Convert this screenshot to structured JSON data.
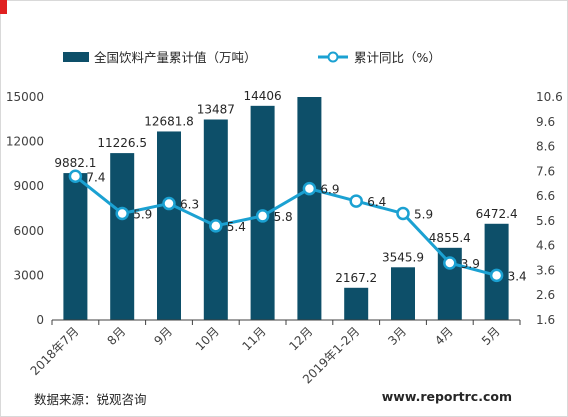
{
  "chart_data": {
    "type": "bar+line",
    "categories": [
      "2018年7月",
      "8月",
      "9月",
      "10月",
      "11月",
      "12月",
      "2019年1-2月",
      "3月",
      "4月",
      "5月"
    ],
    "series": [
      {
        "name": "全国饮料产量累计值（万吨）",
        "type": "bar",
        "axis": "left",
        "values": [
          9882.1,
          11226.5,
          12681.8,
          13487,
          14406,
          15000,
          2167.2,
          3545.9,
          4855.4,
          6472.4
        ],
        "labels": [
          "9882.1",
          "11226.5",
          "12681.8",
          "13487",
          "14406",
          "",
          "2167.2",
          "3545.9",
          "4855.4",
          "6472.4"
        ]
      },
      {
        "name": "累计同比（%）",
        "type": "line",
        "axis": "right",
        "values": [
          7.4,
          5.9,
          6.3,
          5.4,
          5.8,
          6.9,
          6.4,
          5.9,
          3.9,
          3.4
        ],
        "labels": [
          "7.4",
          "5.9",
          "6.3",
          "5.4",
          "5.8",
          "6.9",
          "6.4",
          "5.9",
          "3.9",
          "3.4"
        ]
      }
    ],
    "y_left": {
      "min": 0,
      "max": 15000,
      "ticks": [
        "0",
        "3000",
        "6000",
        "9000",
        "12000",
        "15000"
      ]
    },
    "y_right": {
      "min": 1.6,
      "max": 10.6,
      "ticks": [
        "1.6",
        "2.6",
        "3.6",
        "4.6",
        "5.6",
        "6.6",
        "7.6",
        "8.6",
        "9.6",
        "10.6"
      ]
    },
    "grid": false,
    "legend": "top",
    "colors": {
      "bar": "#0d4f69",
      "line": "#1ba1d2",
      "marker_fill": "#ffffff"
    }
  },
  "footer": {
    "source": "数据来源：锐观咨询",
    "website": "www.reportrc.com"
  }
}
